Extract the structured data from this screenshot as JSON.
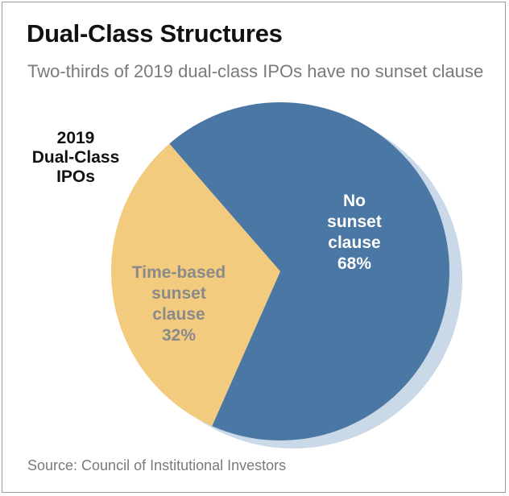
{
  "header": {
    "title": "Dual-Class Structures",
    "subtitle": "Two-thirds of 2019 dual-class IPOs have no sunset clause"
  },
  "chart_label": {
    "lines": [
      "2019",
      "Dual-Class",
      "IPOs"
    ]
  },
  "chart_data": {
    "type": "pie",
    "slices": [
      {
        "label": "No sunset clause",
        "label_lines": [
          "No",
          "sunset",
          "clause"
        ],
        "value": 68,
        "value_label": "68%",
        "color": "#4a77a3",
        "text_color": "#ffffff"
      },
      {
        "label": "Time-based sunset clause",
        "label_lines": [
          "Time-based",
          "sunset",
          "clause"
        ],
        "value": 32,
        "value_label": "32%",
        "color": "#f2cb7f",
        "text_color": "#8a8a8a"
      }
    ],
    "shadow_color": "#c9d9e8"
  },
  "footer": {
    "source": "Source: Council of Institutional Investors"
  }
}
